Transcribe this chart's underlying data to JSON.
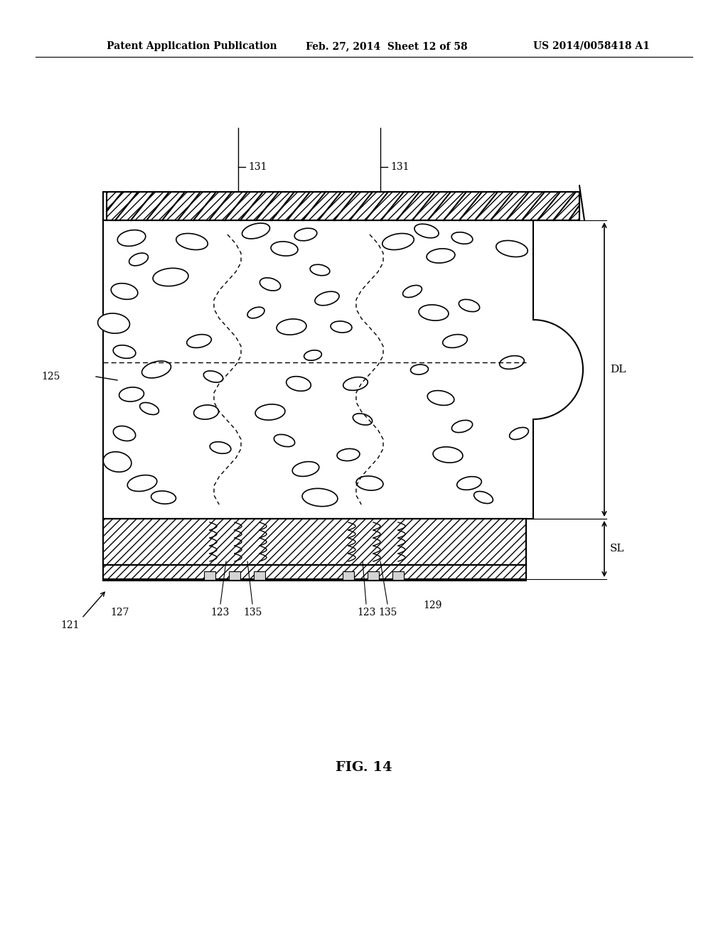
{
  "bg_color": "#ffffff",
  "title_header": "Patent Application Publication",
  "title_date": "Feb. 27, 2014  Sheet 12 of 58",
  "title_patent": "US 2014/0058418 A1",
  "fig_label": "FIG. 14",
  "labels": {
    "131_left": "131",
    "131_right": "131",
    "125": "125",
    "DL": "DL",
    "SL": "SL",
    "121": "121",
    "127": "127",
    "123_left": "123",
    "123_right": "123",
    "135_left": "135",
    "135_right": "135",
    "129": "129"
  }
}
